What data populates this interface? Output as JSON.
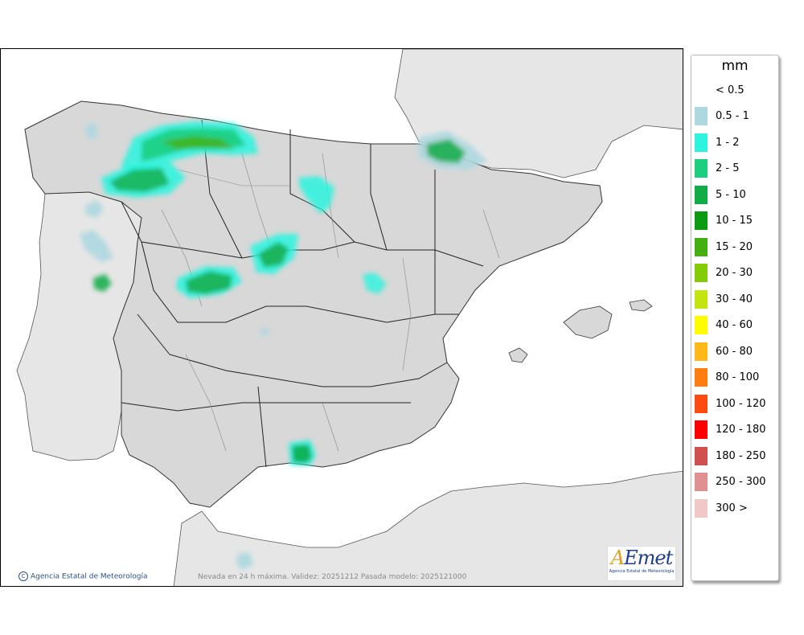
{
  "legend": {
    "unit": "mm",
    "items": [
      {
        "label": "< 0.5",
        "color": ""
      },
      {
        "label": "0.5 - 1",
        "color": "#add8e0"
      },
      {
        "label": "1 - 2",
        "color": "#2cf4de"
      },
      {
        "label": "2 - 5",
        "color": "#1ece80"
      },
      {
        "label": "5 - 10",
        "color": "#10ac48"
      },
      {
        "label": "10 - 15",
        "color": "#0c9a10"
      },
      {
        "label": "15 - 20",
        "color": "#44b010"
      },
      {
        "label": "20 - 30",
        "color": "#84cc08"
      },
      {
        "label": "30 - 40",
        "color": "#c4e410"
      },
      {
        "label": "40 - 60",
        "color": "#fffc00"
      },
      {
        "label": "60 - 80",
        "color": "#ffb818"
      },
      {
        "label": "80 - 100",
        "color": "#ff7c0e"
      },
      {
        "label": "100 - 120",
        "color": "#ff4a10"
      },
      {
        "label": "120 - 180",
        "color": "#ff0000"
      },
      {
        "label": "180 - 250",
        "color": "#d05050"
      },
      {
        "label": "250 - 300",
        "color": "#e09090"
      },
      {
        "label": "300 >",
        "color": "#f0c8c8"
      }
    ]
  },
  "footer": {
    "credit": "Agencia Estatal de Meteorología",
    "validity": "Nevada en 24 h máxima. Validez: 20251212 Pasada modelo: 2025121000"
  },
  "logo": {
    "word_a": "A",
    "word_rest": "Emet",
    "sub": "Agencia Estatal de Meteorología"
  }
}
